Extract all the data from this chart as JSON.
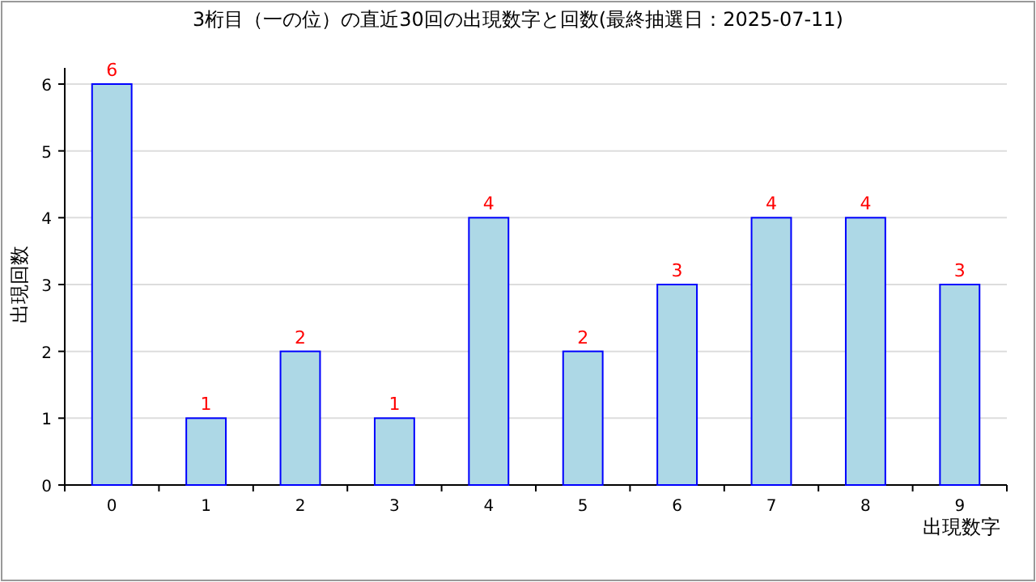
{
  "chart_data": {
    "type": "bar",
    "title": "3桁目（一の位）の直近30回の出現数字と回数(最終抽選日：2025-07-11)",
    "xlabel": "出現数字",
    "ylabel": "出現回数",
    "categories": [
      "0",
      "1",
      "2",
      "3",
      "4",
      "5",
      "6",
      "7",
      "8",
      "9"
    ],
    "values": [
      6,
      1,
      2,
      1,
      4,
      2,
      3,
      4,
      4,
      3
    ],
    "color": "#add8e6",
    "ylim": [
      0,
      6
    ],
    "yticks": [
      0,
      1,
      2,
      3,
      4,
      5,
      6
    ],
    "grid": "y",
    "data_labels": true
  }
}
